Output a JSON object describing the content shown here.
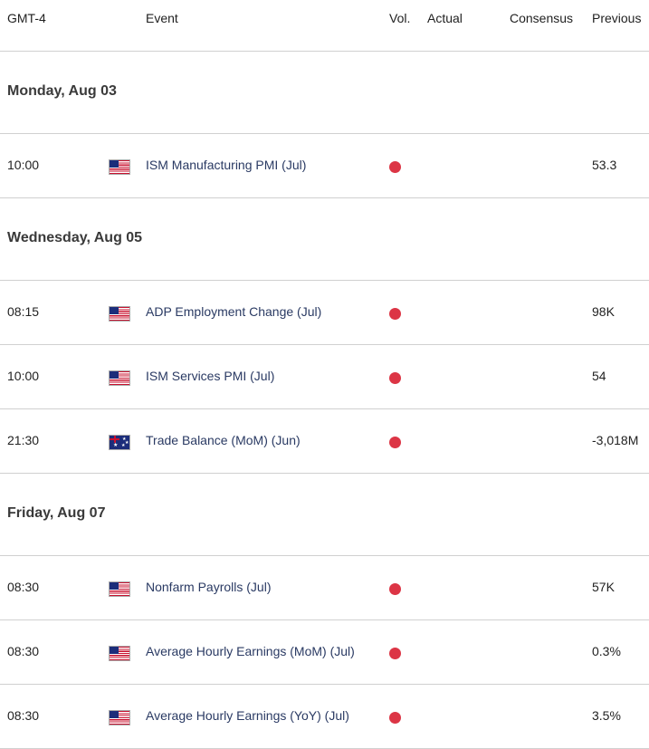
{
  "header": {
    "timezone": "GMT-4",
    "event": "Event",
    "vol": "Vol.",
    "actual": "Actual",
    "consensus": "Consensus",
    "previous": "Previous"
  },
  "days": [
    {
      "label": "Monday, Aug 03",
      "events": [
        {
          "time": "10:00",
          "country": "us-flag-icon",
          "event": "ISM Manufacturing PMI (Jul)",
          "vol_color": "#dc3545",
          "actual": "",
          "consensus": "",
          "previous": "53.3"
        }
      ]
    },
    {
      "label": "Wednesday, Aug 05",
      "events": [
        {
          "time": "08:15",
          "country": "us-flag-icon",
          "event": "ADP Employment Change (Jul)",
          "vol_color": "#dc3545",
          "actual": "",
          "consensus": "",
          "previous": "98K"
        },
        {
          "time": "10:00",
          "country": "us-flag-icon",
          "event": "ISM Services PMI (Jul)",
          "vol_color": "#dc3545",
          "actual": "",
          "consensus": "",
          "previous": "54"
        },
        {
          "time": "21:30",
          "country": "au-flag-icon",
          "event": "Trade Balance (MoM) (Jun)",
          "vol_color": "#dc3545",
          "actual": "",
          "consensus": "",
          "previous": "-3,018M"
        }
      ]
    },
    {
      "label": "Friday, Aug 07",
      "events": [
        {
          "time": "08:30",
          "country": "us-flag-icon",
          "event": "Nonfarm Payrolls (Jul)",
          "vol_color": "#dc3545",
          "actual": "",
          "consensus": "",
          "previous": "57K"
        },
        {
          "time": "08:30",
          "country": "us-flag-icon",
          "event": "Average Hourly Earnings (MoM) (Jul)",
          "vol_color": "#dc3545",
          "actual": "",
          "consensus": "",
          "previous": "0.3%"
        },
        {
          "time": "08:30",
          "country": "us-flag-icon",
          "event": "Average Hourly Earnings (YoY) (Jul)",
          "vol_color": "#dc3545",
          "actual": "",
          "consensus": "",
          "previous": "3.5%"
        }
      ]
    }
  ]
}
